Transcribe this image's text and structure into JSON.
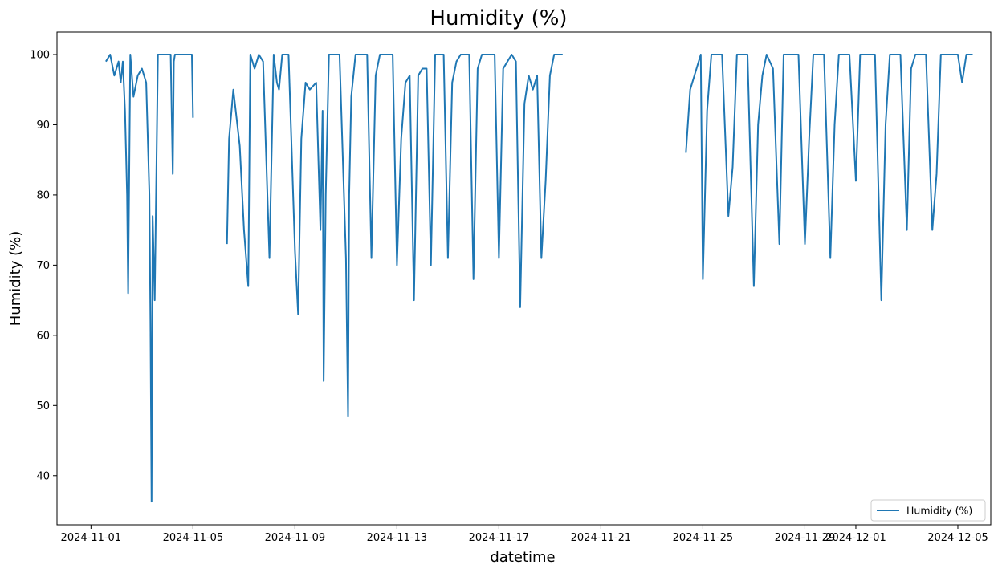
{
  "chart_data": {
    "type": "line",
    "title": "Humidity (%)",
    "xlabel": "datetime",
    "ylabel": "Humidity (%)",
    "xlim": [
      "2024-10-30T16:00",
      "2024-12-06T07:00"
    ],
    "ylim": [
      33,
      103.2
    ],
    "grid": false,
    "legend_position": "bottom-right",
    "x_ticks": [
      "2024-11-01",
      "2024-11-05",
      "2024-11-09",
      "2024-11-13",
      "2024-11-17",
      "2024-11-21",
      "2024-11-25",
      "2024-11-29",
      "2024-12-01",
      "2024-12-05"
    ],
    "y_ticks": [
      40,
      50,
      60,
      70,
      80,
      90,
      100
    ],
    "colors": {
      "series": "#1f77b4"
    },
    "series": [
      {
        "name": "Humidity (%)",
        "segments": [
          {
            "x": [
              "2024-11-01T14:00",
              "2024-11-01T18:00",
              "2024-11-01T22:00",
              "2024-11-02T02:00",
              "2024-11-02T04:00",
              "2024-11-02T06:00",
              "2024-11-02T08:00",
              "2024-11-02T10:00",
              "2024-11-02T11:00",
              "2024-11-02T13:00",
              "2024-11-02T16:00",
              "2024-11-02T20:00",
              "2024-11-03T00:00",
              "2024-11-03T04:00",
              "2024-11-03T07:00",
              "2024-11-03T08:00",
              "2024-11-03T09:00",
              "2024-11-03T10:00",
              "2024-11-03T12:00",
              "2024-11-03T15:00",
              "2024-11-03T18:00",
              "2024-11-04T00:00",
              "2024-11-04T03:00",
              "2024-11-04T05:00",
              "2024-11-04T06:00",
              "2024-11-04T07:00",
              "2024-11-04T09:00",
              "2024-11-04T12:00",
              "2024-11-04T18:00",
              "2024-11-04T23:00",
              "2024-11-05T00:00"
            ],
            "y": [
              99,
              100,
              97,
              99,
              96,
              99,
              92,
              80,
              66,
              100,
              94,
              97,
              98,
              96,
              80,
              62,
              36.3,
              77,
              65,
              100,
              100,
              100,
              100,
              83,
              99,
              100,
              100,
              100,
              100,
              100,
              91
            ]
          },
          {
            "x": [
              "2024-11-06T08:00",
              "2024-11-06T10:00",
              "2024-11-06T14:00",
              "2024-11-06T20:00",
              "2024-11-07T00:00",
              "2024-11-07T04:00",
              "2024-11-07T06:00",
              "2024-11-07T08:00",
              "2024-11-07T10:00",
              "2024-11-07T14:00",
              "2024-11-07T18:00",
              "2024-11-08T00:00",
              "2024-11-08T04:00",
              "2024-11-08T07:00",
              "2024-11-08T09:00",
              "2024-11-08T12:00",
              "2024-11-08T18:00",
              "2024-11-09T00:00",
              "2024-11-09T03:00",
              "2024-11-09T06:00",
              "2024-11-09T10:00",
              "2024-11-09T14:00",
              "2024-11-09T20:00",
              "2024-11-10T00:00",
              "2024-11-10T02:00",
              "2024-11-10T03:00",
              "2024-11-10T05:00",
              "2024-11-10T08:00",
              "2024-11-10T12:00",
              "2024-11-10T18:00",
              "2024-11-11T00:00",
              "2024-11-11T02:00",
              "2024-11-11T03:00",
              "2024-11-11T05:00",
              "2024-11-11T09:00",
              "2024-11-11T14:00",
              "2024-11-11T20:00",
              "2024-11-12T00:00",
              "2024-11-12T04:00",
              "2024-11-12T08:00",
              "2024-11-12T12:00",
              "2024-11-12T16:00",
              "2024-11-12T20:00",
              "2024-11-13T00:00",
              "2024-11-13T04:00",
              "2024-11-13T08:00",
              "2024-11-13T12:00",
              "2024-11-13T16:00",
              "2024-11-13T20:00",
              "2024-11-14T00:00",
              "2024-11-14T04:00",
              "2024-11-14T08:00",
              "2024-11-14T12:00",
              "2024-11-14T16:00",
              "2024-11-14T20:00",
              "2024-11-15T00:00",
              "2024-11-15T04:00",
              "2024-11-15T08:00",
              "2024-11-15T12:00",
              "2024-11-15T16:00",
              "2024-11-15T20:00",
              "2024-11-16T00:00",
              "2024-11-16T04:00",
              "2024-11-16T08:00",
              "2024-11-16T12:00",
              "2024-11-16T16:00",
              "2024-11-16T20:00",
              "2024-11-17T00:00",
              "2024-11-17T04:00",
              "2024-11-17T08:00",
              "2024-11-17T12:00",
              "2024-11-17T16:00",
              "2024-11-17T20:00",
              "2024-11-18T00:00",
              "2024-11-18T04:00",
              "2024-11-18T08:00",
              "2024-11-18T12:00",
              "2024-11-18T16:00",
              "2024-11-18T20:00",
              "2024-11-19T00:00",
              "2024-11-19T04:00",
              "2024-11-19T08:00",
              "2024-11-19T12:00"
            ],
            "y": [
              73,
              88,
              95,
              87,
              75,
              67,
              100,
              99,
              98,
              100,
              99,
              71,
              100,
              96,
              95,
              100,
              100,
              72,
              63,
              88,
              96,
              95,
              96,
              75,
              92,
              53.5,
              80,
              100,
              100,
              100,
              71,
              48.5,
              80,
              94,
              100,
              100,
              100,
              71,
              97,
              100,
              100,
              100,
              100,
              70,
              88,
              96,
              97,
              65,
              97,
              98,
              98,
              70,
              100,
              100,
              100,
              71,
              96,
              99,
              100,
              100,
              100,
              68,
              98,
              100,
              100,
              100,
              100,
              71,
              98,
              99,
              100,
              99,
              64,
              93,
              97,
              95,
              97,
              71,
              82,
              97,
              100,
              100,
              100
            ]
          },
          {
            "x": [
              "2024-11-24T08:00",
              "2024-11-24T12:00",
              "2024-11-24T18:00",
              "2024-11-24T22:00",
              "2024-11-25T00:00",
              "2024-11-25T04:00",
              "2024-11-25T08:00",
              "2024-11-25T12:00",
              "2024-11-25T18:00",
              "2024-11-26T00:00",
              "2024-11-26T04:00",
              "2024-11-26T08:00",
              "2024-11-26T12:00",
              "2024-11-26T18:00",
              "2024-11-27T00:00",
              "2024-11-27T04:00",
              "2024-11-27T08:00",
              "2024-11-27T12:00",
              "2024-11-27T18:00",
              "2024-11-28T00:00",
              "2024-11-28T04:00",
              "2024-11-28T08:00",
              "2024-11-28T12:00",
              "2024-11-28T18:00",
              "2024-11-29T00:00",
              "2024-11-29T04:00",
              "2024-11-29T08:00",
              "2024-11-29T12:00",
              "2024-11-29T18:00",
              "2024-11-30T00:00",
              "2024-11-30T04:00",
              "2024-11-30T08:00",
              "2024-11-30T12:00",
              "2024-11-30T18:00",
              "2024-12-01T00:00",
              "2024-12-01T04:00",
              "2024-12-01T08:00",
              "2024-12-01T12:00",
              "2024-12-01T18:00",
              "2024-12-02T00:00",
              "2024-12-02T04:00",
              "2024-12-02T08:00",
              "2024-12-02T12:00",
              "2024-12-02T18:00",
              "2024-12-03T00:00",
              "2024-12-03T04:00",
              "2024-12-03T08:00",
              "2024-12-03T12:00",
              "2024-12-03T18:00",
              "2024-12-04T00:00",
              "2024-12-04T04:00",
              "2024-12-04T08:00",
              "2024-12-04T12:00",
              "2024-12-04T18:00",
              "2024-12-05T00:00",
              "2024-12-05T04:00",
              "2024-12-05T08:00",
              "2024-12-05T14:00"
            ],
            "y": [
              86,
              95,
              98,
              100,
              68,
              92,
              100,
              100,
              100,
              77,
              84,
              100,
              100,
              100,
              67,
              90,
              97,
              100,
              98,
              73,
              100,
              100,
              100,
              100,
              73,
              88,
              100,
              100,
              100,
              71,
              90,
              100,
              100,
              100,
              82,
              100,
              100,
              100,
              100,
              65,
              90,
              100,
              100,
              100,
              75,
              98,
              100,
              100,
              100,
              75,
              83,
              100,
              100,
              100,
              100,
              96,
              100,
              100
            ]
          }
        ]
      }
    ]
  }
}
